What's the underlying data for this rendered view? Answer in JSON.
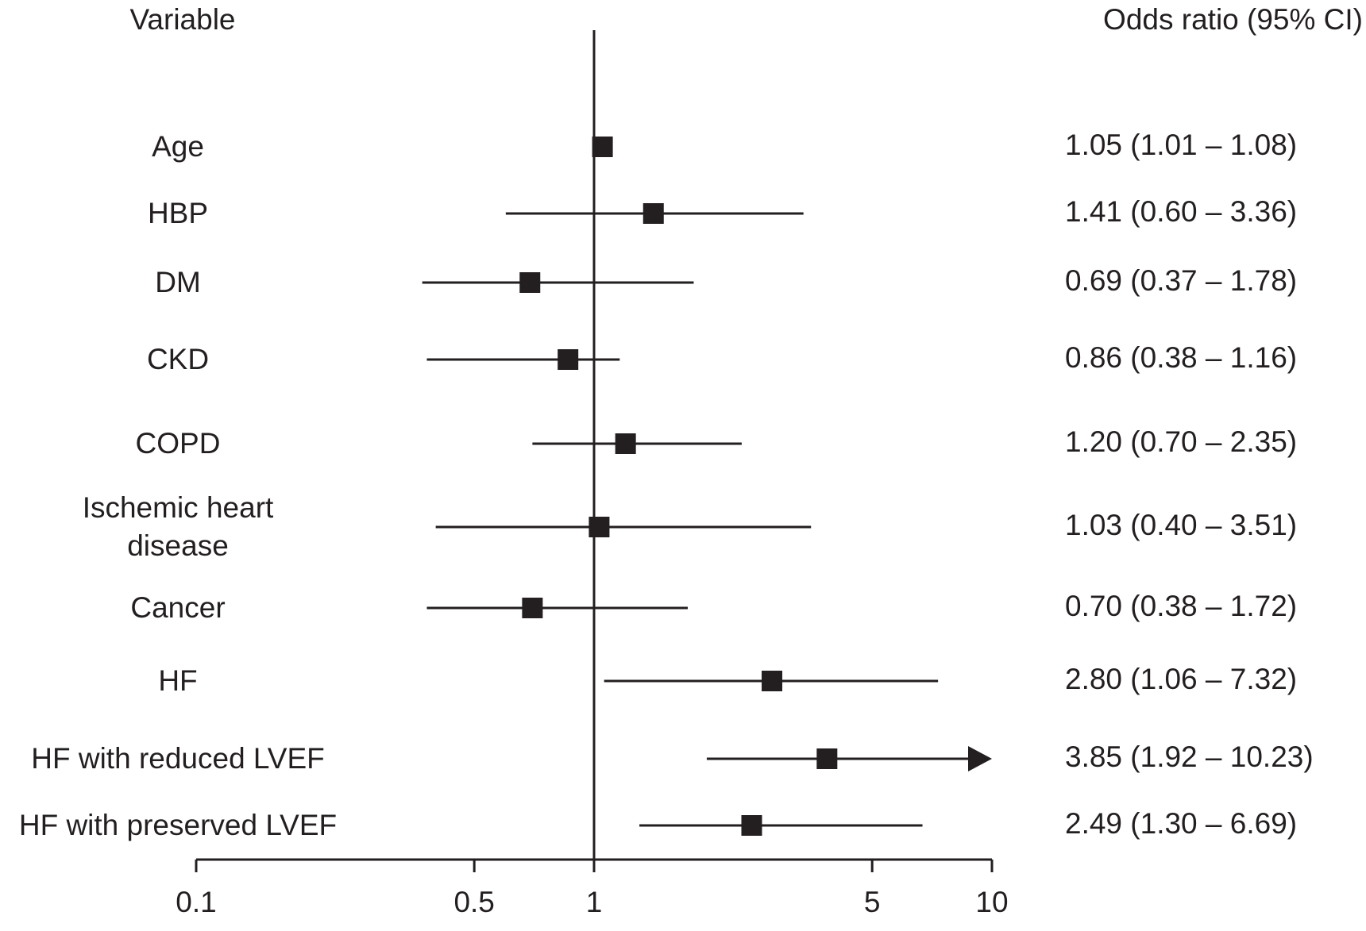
{
  "chart_data": {
    "type": "forest",
    "variable_header": "Variable",
    "estimate_header": "Odds ratio (95% CI)",
    "categories": [
      "Age",
      "HBP",
      "DM",
      "CKD",
      "COPD",
      "Ischemic heart\ndisease",
      "Cancer",
      "HF",
      "HF with reduced LVEF",
      "HF with preserved LVEF"
    ],
    "values": [
      1.05,
      1.41,
      0.69,
      0.86,
      1.2,
      1.03,
      0.7,
      2.8,
      3.85,
      2.49
    ],
    "lower": [
      1.01,
      0.6,
      0.37,
      0.38,
      0.7,
      0.4,
      0.38,
      1.06,
      1.92,
      1.3
    ],
    "upper": [
      1.08,
      3.36,
      1.78,
      1.16,
      2.35,
      3.51,
      1.72,
      7.32,
      10.23,
      6.69
    ],
    "value_labels": [
      "1.05 (1.01 – 1.08)",
      "1.41 (0.60 – 3.36)",
      "0.69 (0.37 – 1.78)",
      "0.86 (0.38 – 1.16)",
      "1.20 (0.70 – 2.35)",
      "1.03 (0.40 – 3.51)",
      "0.70 (0.38 – 1.72)",
      "2.80 (1.06 – 7.32)",
      "3.85 (1.92 – 10.23)",
      "2.49 (1.30 – 6.69)"
    ],
    "xlim": [
      0.1,
      10
    ],
    "xticks": [
      0.1,
      0.5,
      1,
      5,
      10
    ],
    "log_x": true,
    "reference_line": 1,
    "color": "#231f20"
  }
}
